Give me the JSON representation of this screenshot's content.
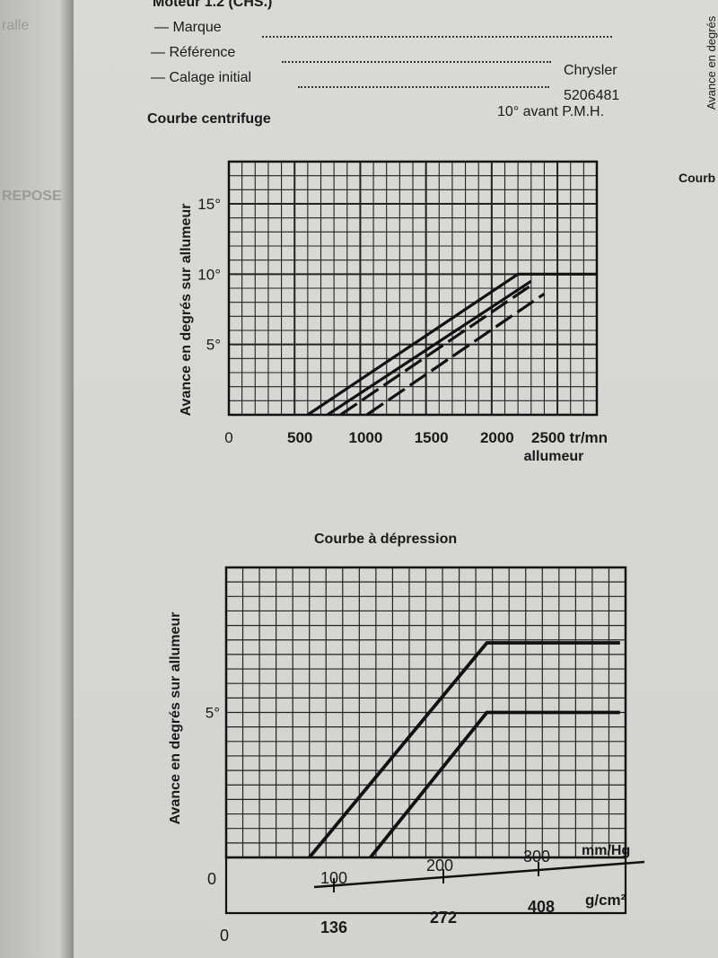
{
  "header": {
    "engine_heading": "Moteur 1.2 (CHS.)",
    "rows": [
      {
        "label": "— Marque",
        "value": "Chrysler"
      },
      {
        "label": "— Référence",
        "value": "5206481"
      },
      {
        "label": "— Calage initial",
        "value": "10° avant P.M.H."
      }
    ]
  },
  "right_page": {
    "vertical_text": "Avance en degrés",
    "fragment": "Courb"
  },
  "chart_data": [
    {
      "type": "line",
      "title": "Courbe centrifuge",
      "xlabel": "tr/mn allumeur",
      "ylabel": "Avance en degrés sur allumeur",
      "x_ticks": [
        "500",
        "1000",
        "1500",
        "2000",
        "2500 tr/mn"
      ],
      "x_unit_line2": "allumeur",
      "y_ticks": [
        "5°",
        "10°",
        "15°"
      ],
      "origin_label": "0",
      "xlim": [
        0,
        2800
      ],
      "ylim": [
        0,
        18
      ],
      "grid": true,
      "series": [
        {
          "style": "solid",
          "x": [
            600,
            2200,
            2800
          ],
          "y": [
            0,
            10,
            10
          ]
        },
        {
          "style": "solid",
          "x": [
            750,
            2300
          ],
          "y": [
            0,
            9.5
          ]
        },
        {
          "style": "dashed",
          "x": [
            850,
            2300
          ],
          "y": [
            0,
            9.2
          ]
        },
        {
          "style": "dashed",
          "x": [
            1050,
            2400
          ],
          "y": [
            0,
            8.6
          ]
        }
      ]
    },
    {
      "type": "line",
      "title": "Courbe à dépression",
      "xlabel": "mm/Hg",
      "ylabel": "Avance en degrés sur allumeur",
      "x_ticks": [
        "100",
        "200",
        "300"
      ],
      "x_unit": "mm/Hg",
      "x2_ticks": [
        "136",
        "272",
        "408"
      ],
      "x2_unit": "g/cm²",
      "y_ticks": [
        "5°"
      ],
      "origin_label_top": "0",
      "origin_label_bottom": "0",
      "xlim": [
        0,
        360
      ],
      "ylim": [
        0,
        10
      ],
      "grid": true,
      "series": [
        {
          "style": "solid",
          "x": [
            75,
            235,
            355
          ],
          "y": [
            0,
            7.4,
            7.4
          ]
        },
        {
          "style": "solid",
          "x": [
            130,
            235,
            355
          ],
          "y": [
            0,
            5,
            5
          ]
        }
      ]
    }
  ]
}
